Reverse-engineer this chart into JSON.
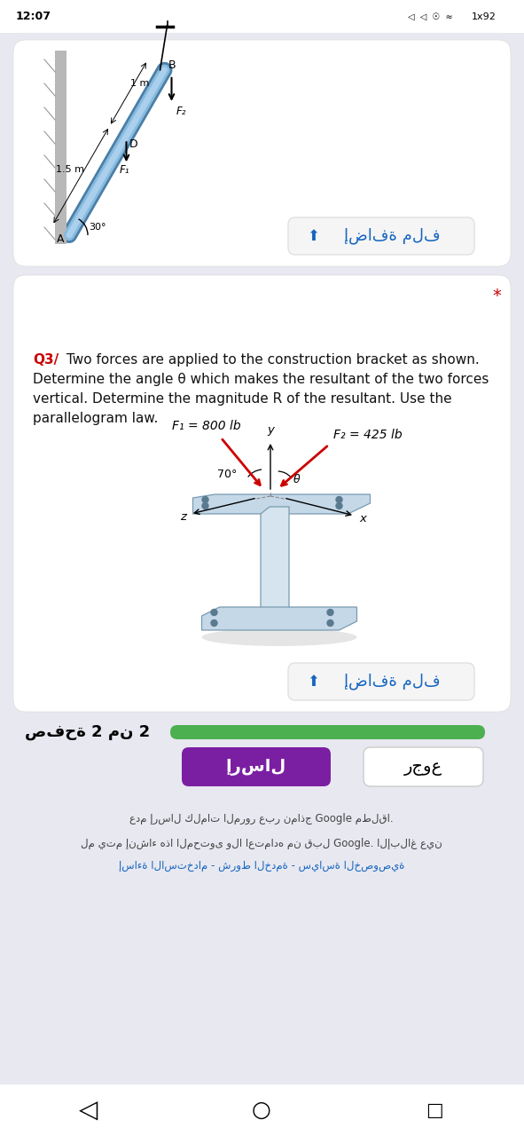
{
  "bg_color": "#e8e8f0",
  "status_bar_text_left": "12:07",
  "status_bar_text_right": "1x92",
  "card1_diagram_label_15m": "1.5 m",
  "card1_diagram_label_1m": "1 m",
  "card1_upload_text": "إضافة ملف",
  "card2_star": "*",
  "card2_star_color": "#cc0000",
  "card2_question_prefix": "Q3/",
  "card2_question_prefix_color": "#cc0000",
  "card2_q_line1": " Two forces are applied to the construction bracket as shown.",
  "card2_q_line2": "Determine the angle θ which makes the resultant of the two forces",
  "card2_q_line3": "vertical. Determine the magnitude R of the resultant. Use the",
  "card2_q_line4": "parallelogram law.",
  "card2_text_color": "#111111",
  "card2_F1_label": "F₁ = 800 lb",
  "card2_F2_label": "F₂ = 425 lb",
  "card2_angle_label": "70°",
  "card2_theta_label": "θ",
  "card2_y_label": "y",
  "card2_x_label": "x",
  "card2_z_label": "z",
  "card2_upload_text": "إضافة ملف",
  "progress_color": "#4caf50",
  "page_text": "صفحة 2 من 2",
  "send_btn_text": "إرسال",
  "send_btn_color": "#7b1fa2",
  "back_btn_text": "رجوع",
  "footer_text1": "عدم إرسال كلمات المرور عبر نماذج Google مطلقا.",
  "footer_text2": "لم يتم إنشاء هذا المحتوى ولا اعتماده من قبل Google. الإبلاغ عين",
  "footer_text3": "إساءة الاستخدام - شروط الخدمة - سياسة الخصوصية",
  "upload_btn_color": "#f5f5f5",
  "upload_btn_border": "#e0e0e0",
  "upload_icon_color": "#1565c0",
  "upload_text_color": "#1565c0"
}
